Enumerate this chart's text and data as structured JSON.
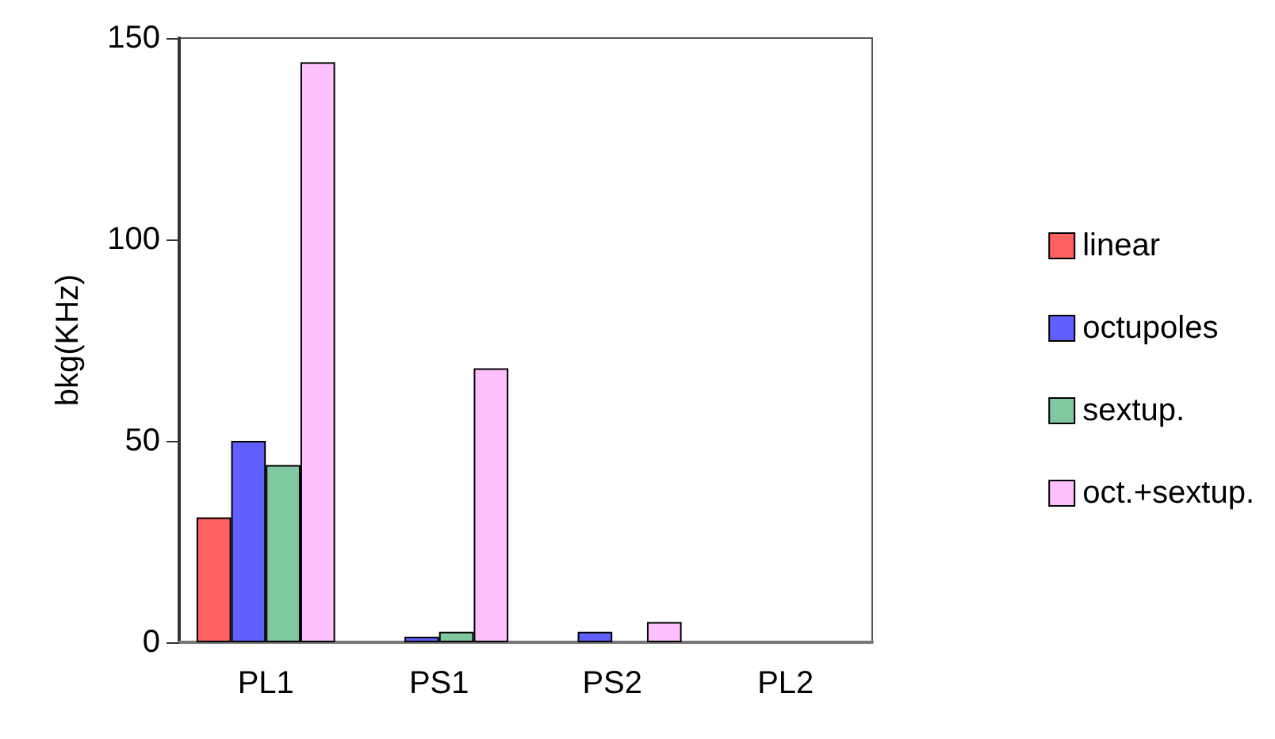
{
  "chart_data": {
    "type": "bar",
    "ylabel": "bkg(KHz)",
    "categories": [
      "PL1",
      "PS1",
      "PS2",
      "PL2"
    ],
    "series": [
      {
        "name": "linear",
        "color": "#ff6060",
        "values": [
          31,
          null,
          null,
          null
        ]
      },
      {
        "name": "octupoles",
        "color": "#6060ff",
        "values": [
          50,
          1.4,
          2.6,
          null
        ]
      },
      {
        "name": "sextup.",
        "color": "#80c8a0",
        "values": [
          44,
          2.6,
          null,
          null
        ]
      },
      {
        "name": "oct.+sextup.",
        "color": "#ffc0ff",
        "values": [
          144,
          68,
          5,
          null
        ]
      }
    ],
    "ylim": [
      0,
      150
    ],
    "yticks": [
      0,
      50,
      100,
      150
    ],
    "grid": false,
    "legend": "right"
  }
}
